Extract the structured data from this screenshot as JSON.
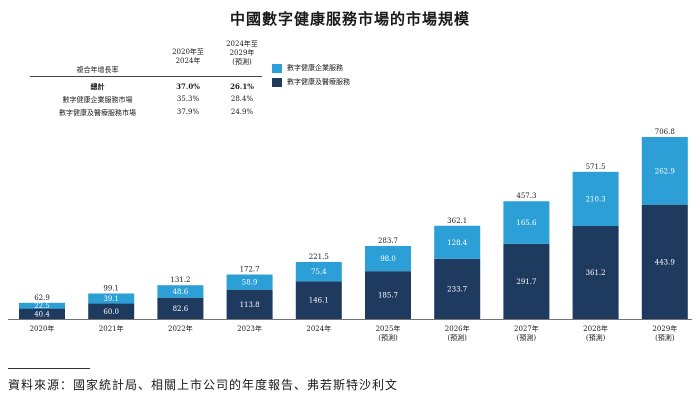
{
  "title": "中國數字健康服務市場的市場規模",
  "cagr_table": {
    "row_header": "複合年增長率",
    "col1_header": [
      "2020年至",
      "2024年"
    ],
    "col2_header": [
      "2024年至",
      "2029年",
      "(預測)"
    ],
    "rows": [
      {
        "label": "總計",
        "v1": "37.0%",
        "v2": "26.1%",
        "bold": true
      },
      {
        "label": "數字健康企業服務市場",
        "v1": "35.3%",
        "v2": "28.4%",
        "bold": false
      },
      {
        "label": "數字健康及醫療服務市場",
        "v1": "37.9%",
        "v2": "24.9%",
        "bold": false
      }
    ]
  },
  "legend": [
    {
      "label": "數字健康企業服務",
      "color": "#2b9fd6"
    },
    {
      "label": "數字健康及醫療服務",
      "color": "#1f3a5f"
    }
  ],
  "chart_data": {
    "type": "bar",
    "stacked": true,
    "categories": [
      "2020年",
      "2021年",
      "2022年",
      "2023年",
      "2024年",
      "2025年",
      "2026年",
      "2027年",
      "2028年",
      "2029年"
    ],
    "forecast_note": "(預測)",
    "forecast_from_index": 5,
    "series": [
      {
        "name": "數字健康及醫療服務",
        "color": "#1f3a5f",
        "values": [
          40.4,
          60.0,
          82.6,
          113.8,
          146.1,
          185.7,
          233.7,
          291.7,
          361.2,
          443.9
        ]
      },
      {
        "name": "數字健康企業服務",
        "color": "#2b9fd6",
        "values": [
          22.5,
          39.1,
          48.6,
          58.9,
          75.4,
          98.0,
          128.4,
          165.6,
          210.3,
          262.9
        ]
      }
    ],
    "totals": [
      62.9,
      99.1,
      131.2,
      172.7,
      221.5,
      283.7,
      362.1,
      457.3,
      571.5,
      706.8
    ],
    "ylim": [
      0,
      706.8
    ]
  },
  "source": "資料來源：國家統計局、相關上市公司的年度報告、弗若斯特沙利文"
}
